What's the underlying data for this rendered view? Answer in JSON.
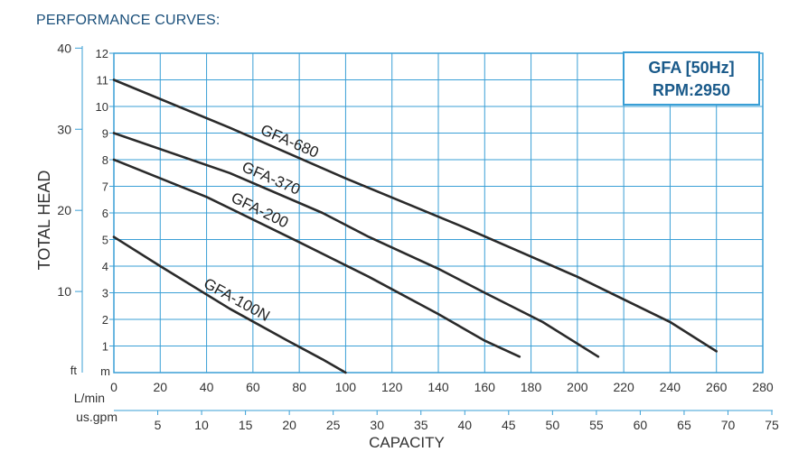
{
  "page_title": "PERFORMANCE CURVES:",
  "colors": {
    "grid": "#3a9fd6",
    "curve": "#2a2a2a",
    "title": "#1a4f7a",
    "legend": "#1a5a8a"
  },
  "legend": {
    "line1": "GFA  [50Hz]",
    "line2": "RPM:2950"
  },
  "chart_data": {
    "type": "line",
    "title": "",
    "ylabel": "TOTAL HEAD",
    "xlabel": "CAPACITY",
    "y_unit_m": "m",
    "y_unit_ft": "ft",
    "x_unit_lmin": "L/min",
    "x_unit_usgpm": "us.gpm",
    "xlim": [
      0,
      280
    ],
    "ylim": [
      0,
      12
    ],
    "y_ticks_m": [
      "1",
      "2",
      "3",
      "4",
      "5",
      "6",
      "7",
      "8",
      "9",
      "10",
      "11",
      "12"
    ],
    "y_ticks_ft": [
      "10",
      "20",
      "30",
      "40"
    ],
    "x_ticks_lmin": [
      "0",
      "20",
      "40",
      "60",
      "80",
      "100",
      "120",
      "140",
      "160",
      "180",
      "200",
      "220",
      "240",
      "260",
      "280"
    ],
    "x_ticks_usgpm": [
      "5",
      "10",
      "15",
      "20",
      "25",
      "30",
      "35",
      "40",
      "45",
      "50",
      "55",
      "60",
      "65",
      "70",
      "75"
    ],
    "grid": true,
    "series": [
      {
        "name": "GFA-680",
        "x": [
          0,
          50,
          100,
          150,
          200,
          240,
          260
        ],
        "y": [
          11.0,
          9.2,
          7.3,
          5.5,
          3.6,
          1.9,
          0.8
        ]
      },
      {
        "name": "GFA-370",
        "x": [
          0,
          50,
          90,
          110,
          140,
          160,
          185,
          209
        ],
        "y": [
          9.0,
          7.5,
          6.0,
          5.1,
          3.9,
          3.0,
          1.9,
          0.6
        ]
      },
      {
        "name": "GFA-200",
        "x": [
          0,
          40,
          80,
          110,
          140,
          160,
          175
        ],
        "y": [
          8.0,
          6.6,
          4.9,
          3.6,
          2.2,
          1.2,
          0.6
        ]
      },
      {
        "name": "GFA-100N",
        "x": [
          0,
          20,
          50,
          75,
          90,
          100
        ],
        "y": [
          5.1,
          4.0,
          2.4,
          1.2,
          0.5,
          0.0
        ]
      }
    ]
  }
}
